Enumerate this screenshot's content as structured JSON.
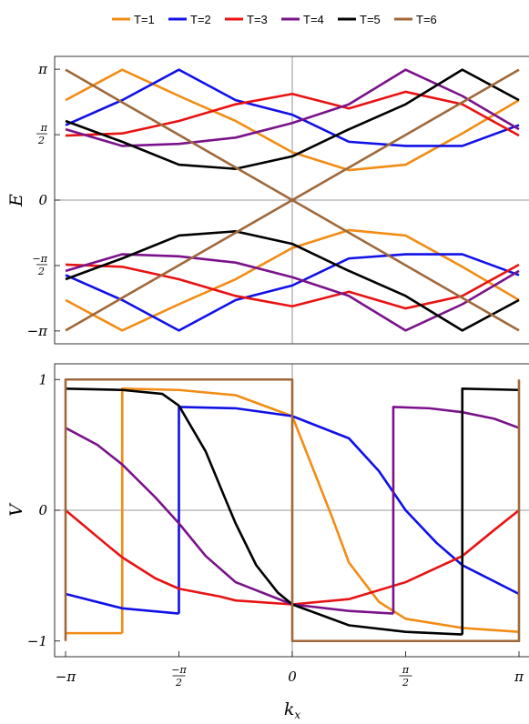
{
  "legend": {
    "items": [
      {
        "label": "T=1",
        "color": "#f28c14"
      },
      {
        "label": "T=2",
        "color": "#1010e8"
      },
      {
        "label": "T=3",
        "color": "#e81212"
      },
      {
        "label": "T=4",
        "color": "#7a128a"
      },
      {
        "label": "T=5",
        "color": "#000000"
      },
      {
        "label": "T=6",
        "color": "#a0683a"
      }
    ]
  },
  "chart_data": [
    {
      "type": "line",
      "title": "",
      "ylabel": "E",
      "xlabel": "",
      "xlim": [
        -3.1416,
        3.1416
      ],
      "ylim": [
        -3.45,
        3.45
      ],
      "yticks": [
        {
          "value": 3.1416,
          "label": "π"
        },
        {
          "value": 1.5708,
          "label": "π/2"
        },
        {
          "value": 0,
          "label": "0"
        },
        {
          "value": -1.5708,
          "label": "−π/2"
        },
        {
          "value": -3.1416,
          "label": "−π"
        }
      ],
      "series": [
        {
          "name": "T=1",
          "color": "#f28c14",
          "upper": {
            "x": [
              -3.1416,
              -2.3562,
              -1.5708,
              -0.7854,
              0,
              0.7854,
              1.5708,
              2.3562,
              3.1416
            ],
            "y": [
              2.4,
              3.13,
              2.5,
              1.9,
              1.15,
              0.72,
              0.85,
              1.6,
              2.4
            ]
          }
        },
        {
          "name": "T=2",
          "color": "#1010e8",
          "upper": {
            "x": [
              -3.1416,
              -2.3562,
              -1.5708,
              -0.7854,
              0,
              0.7854,
              1.5708,
              2.3562,
              3.1416
            ],
            "y": [
              1.8,
              2.4,
              3.13,
              2.4,
              2.05,
              1.4,
              1.3,
              1.3,
              1.8
            ]
          }
        },
        {
          "name": "T=3",
          "color": "#e81212",
          "upper": {
            "x": [
              -3.1416,
              -2.3562,
              -1.5708,
              -0.7854,
              0,
              0.7854,
              1.5708,
              2.3562,
              3.1416
            ],
            "y": [
              1.55,
              1.6,
              1.9,
              2.3,
              2.55,
              2.2,
              2.6,
              2.3,
              1.55
            ]
          }
        },
        {
          "name": "T=4",
          "color": "#7a128a",
          "upper": {
            "x": [
              -3.1416,
              -2.3562,
              -1.5708,
              -0.7854,
              0,
              0.7854,
              1.5708,
              2.3562,
              3.1416
            ],
            "y": [
              1.7,
              1.3,
              1.35,
              1.5,
              1.85,
              2.3,
              3.13,
              2.5,
              1.7
            ]
          }
        },
        {
          "name": "T=5",
          "color": "#000000",
          "upper": {
            "x": [
              -3.1416,
              -2.3562,
              -1.5708,
              -0.7854,
              0,
              0.7854,
              1.5708,
              2.3562,
              3.1416
            ],
            "y": [
              1.9,
              1.4,
              0.85,
              0.75,
              1.05,
              1.7,
              2.3,
              3.13,
              2.4
            ]
          }
        },
        {
          "name": "T=6",
          "color": "#a0683a",
          "upper": {
            "x": [
              -3.1416,
              0,
              3.1416
            ],
            "y": [
              3.13,
              0,
              3.13
            ]
          }
        }
      ]
    },
    {
      "type": "line",
      "title": "",
      "ylabel": "V",
      "xlabel": "kx",
      "xlim": [
        -3.1416,
        3.1416
      ],
      "ylim": [
        -1.12,
        1.12
      ],
      "yticks": [
        {
          "value": 1,
          "label": "1"
        },
        {
          "value": 0,
          "label": "0"
        },
        {
          "value": -1,
          "label": "−1"
        }
      ],
      "xticks": [
        {
          "value": -3.1416,
          "label": "−π"
        },
        {
          "value": -1.5708,
          "label": "−π/2"
        },
        {
          "value": 0,
          "label": "0"
        },
        {
          "value": 1.5708,
          "label": "π/2"
        },
        {
          "value": 3.1416,
          "label": "π"
        }
      ],
      "series": [
        {
          "name": "T=1",
          "color": "#f28c14",
          "segments": [
            {
              "x": [
                -3.1416,
                -2.356
              ],
              "y": [
                -0.94,
                -0.94
              ]
            },
            {
              "x": [
                -2.356,
                -2.356,
                -1.5708,
                -0.7854,
                0,
                0.3,
                0.55,
                0.785,
                1.2,
                1.5708,
                2.3562,
                3.1416
              ],
              "y": [
                -0.94,
                0.93,
                0.92,
                0.88,
                0.72,
                0.3,
                -0.05,
                -0.4,
                -0.7,
                -0.83,
                -0.9,
                -0.93
              ]
            }
          ]
        },
        {
          "name": "T=2",
          "color": "#1010e8",
          "segments": [
            {
              "x": [
                -3.1416,
                -2.3562,
                -1.5708
              ],
              "y": [
                -0.64,
                -0.75,
                -0.79
              ]
            },
            {
              "x": [
                -1.5708,
                -1.5708,
                -0.7854,
                0,
                0.7854,
                1.2,
                1.5708,
                2.0,
                2.3562,
                3.1416
              ],
              "y": [
                -0.79,
                0.79,
                0.78,
                0.72,
                0.55,
                0.3,
                0.0,
                -0.25,
                -0.42,
                -0.64
              ]
            }
          ]
        },
        {
          "name": "T=3",
          "color": "#e81212",
          "segments": [
            {
              "x": [
                -3.1416,
                -2.6,
                -2.3562,
                -1.9,
                -1.5708,
                -1.0,
                -0.7854,
                0,
                0.7854,
                1.5708,
                2.3562,
                2.8,
                3.1416
              ],
              "y": [
                0,
                -0.25,
                -0.36,
                -0.52,
                -0.6,
                -0.66,
                -0.69,
                -0.72,
                -0.68,
                -0.55,
                -0.35,
                -0.15,
                0
              ]
            }
          ]
        },
        {
          "name": "T=4",
          "color": "#7a128a",
          "segments": [
            {
              "x": [
                -3.1416,
                -2.7,
                -2.3562,
                -1.9,
                -1.5708,
                -1.2,
                -0.7854,
                0,
                0.7854,
                1.4
              ],
              "y": [
                0.63,
                0.5,
                0.35,
                0.1,
                -0.1,
                -0.35,
                -0.55,
                -0.72,
                -0.77,
                -0.79
              ]
            },
            {
              "x": [
                1.4,
                1.4,
                1.9,
                2.3562,
                2.8,
                3.1416
              ],
              "y": [
                -0.79,
                0.79,
                0.78,
                0.75,
                0.7,
                0.63
              ]
            }
          ]
        },
        {
          "name": "T=5",
          "color": "#000000",
          "segments": [
            {
              "x": [
                -3.1416,
                -2.3562,
                -1.8,
                -1.5708,
                -1.2,
                -0.9,
                -0.7854,
                -0.5,
                -0.2,
                0,
                0.7854,
                1.5708,
                2.3562
              ],
              "y": [
                0.93,
                0.92,
                0.89,
                0.8,
                0.45,
                0.05,
                -0.1,
                -0.42,
                -0.63,
                -0.72,
                -0.88,
                -0.93,
                -0.95
              ]
            },
            {
              "x": [
                2.3562,
                2.3562,
                3.1416
              ],
              "y": [
                -0.95,
                0.93,
                0.92
              ]
            }
          ]
        },
        {
          "name": "T=6",
          "color": "#a0683a",
          "segments": [
            {
              "x": [
                -3.1416,
                -3.1416,
                0,
                0,
                3.1416,
                3.1416
              ],
              "y": [
                -1,
                1,
                1,
                -1,
                -1,
                1
              ]
            }
          ]
        }
      ]
    }
  ]
}
